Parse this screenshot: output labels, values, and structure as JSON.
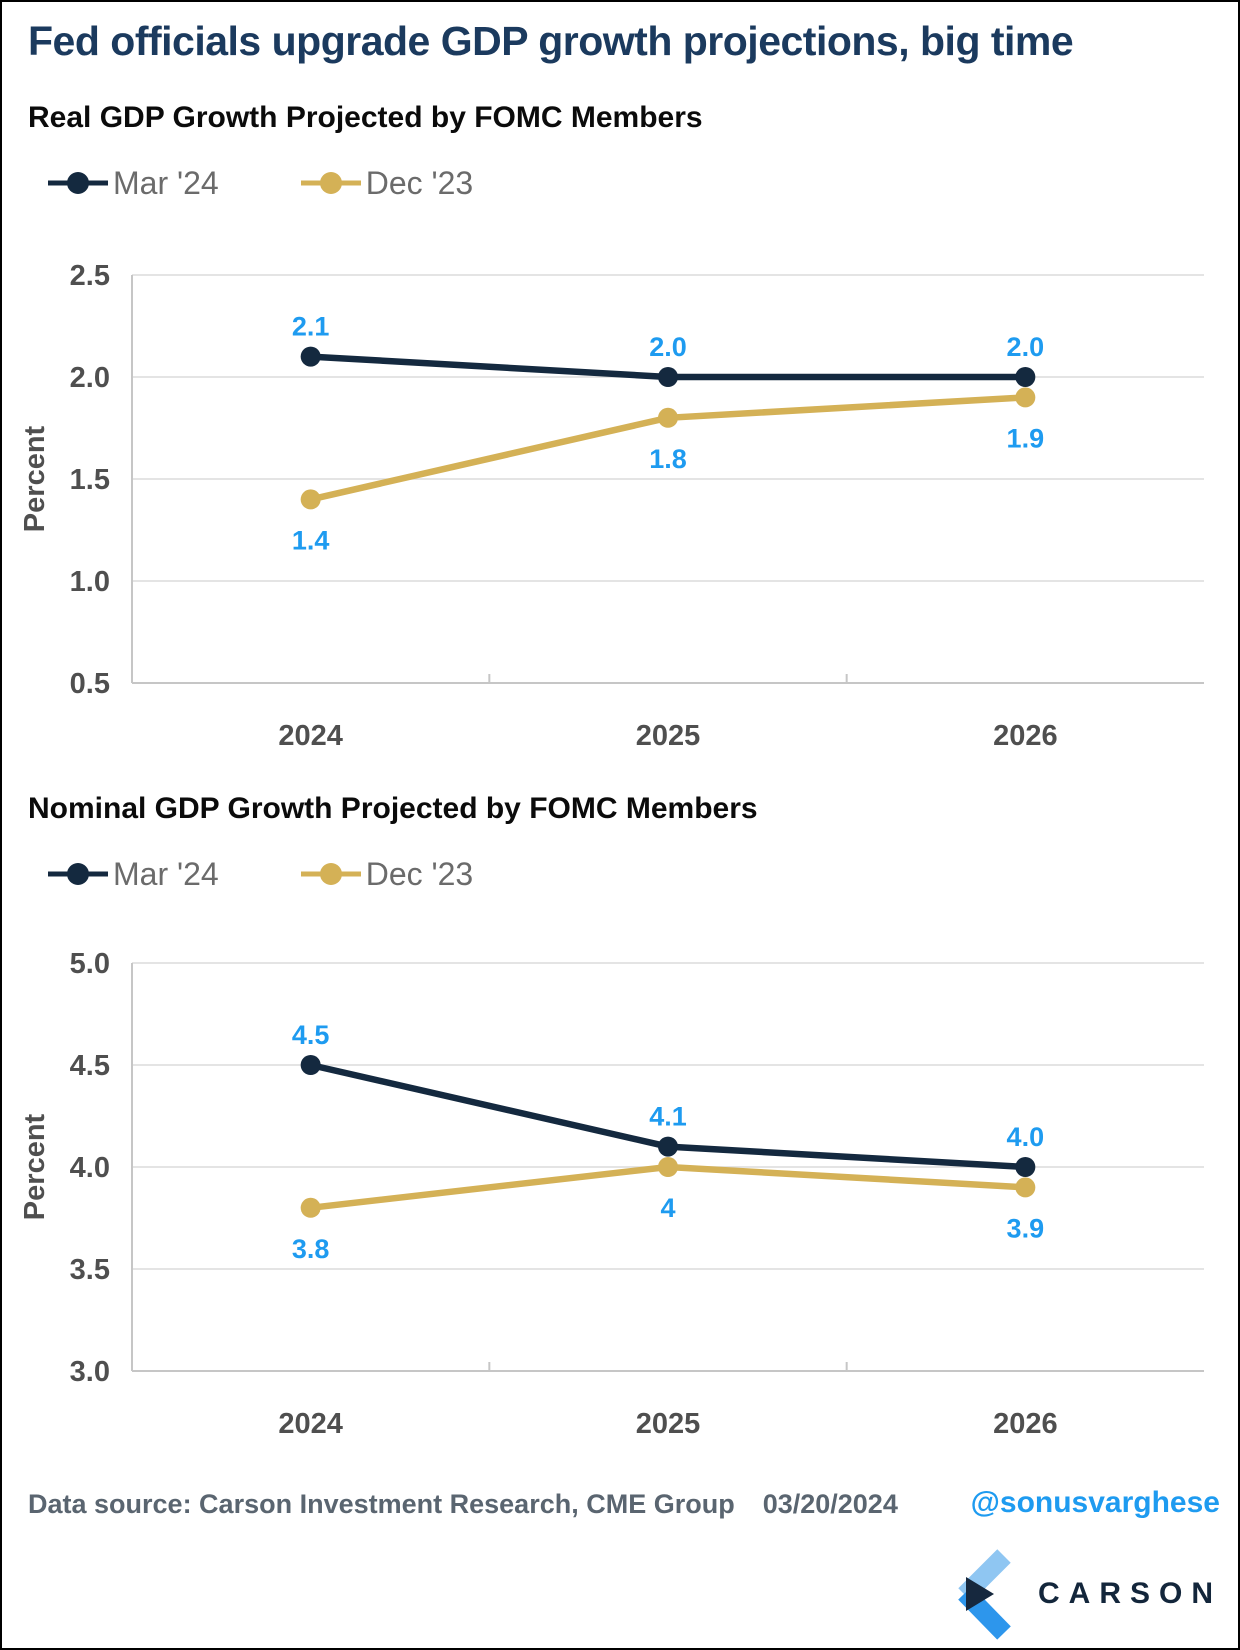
{
  "page_title": "Fed officials upgrade GDP growth projections, big time",
  "colors": {
    "title": "#1B3A5E",
    "data_label": "#1E9BF0",
    "grid": "#DCDCDC",
    "axis": "#C6C6C6",
    "tick_text": "#4F4F4F",
    "legend_text": "#6B6B6B",
    "navy_series": "#14293F",
    "gold_series": "#D4B156"
  },
  "chart_data": [
    {
      "type": "line",
      "title": "Real GDP Growth Projected by FOMC Members",
      "ylabel": "Percent",
      "xlabel": "",
      "categories": [
        "2024",
        "2025",
        "2026"
      ],
      "ylim": [
        0.5,
        2.5
      ],
      "yticks": [
        "2.5",
        "2.0",
        "1.5",
        "1.0",
        "0.5"
      ],
      "grid": true,
      "legend_position": "top-left",
      "series": [
        {
          "name": "Mar '24",
          "color": "#14293F",
          "values": [
            2.1,
            2.0,
            2.0
          ],
          "point_labels": [
            "2.1",
            "2.0",
            "2.0"
          ],
          "label_position": "above"
        },
        {
          "name": "Dec '23",
          "color": "#D4B156",
          "values": [
            1.4,
            1.8,
            1.9
          ],
          "point_labels": [
            "1.4",
            "1.8",
            "1.9"
          ],
          "label_position": "below"
        }
      ]
    },
    {
      "type": "line",
      "title": "Nominal GDP Growth Projected by FOMC Members",
      "ylabel": "Percent",
      "xlabel": "",
      "categories": [
        "2024",
        "2025",
        "2026"
      ],
      "ylim": [
        3.0,
        5.0
      ],
      "yticks": [
        "5.0",
        "4.5",
        "4.0",
        "3.5",
        "3.0"
      ],
      "grid": true,
      "legend_position": "top-left",
      "series": [
        {
          "name": "Mar '24",
          "color": "#14293F",
          "values": [
            4.5,
            4.1,
            4.0
          ],
          "point_labels": [
            "4.5",
            "4.1",
            "4.0"
          ],
          "label_position": "above"
        },
        {
          "name": "Dec '23",
          "color": "#D4B156",
          "values": [
            3.8,
            4.0,
            3.9
          ],
          "point_labels": [
            "3.8",
            "4",
            "3.9"
          ],
          "label_position": "below"
        }
      ]
    }
  ],
  "footer": {
    "source": "Data source: Carson Investment Research, CME Group",
    "date": "03/20/2024",
    "handle": "@sonusvarghese",
    "brand": "CARSON"
  }
}
